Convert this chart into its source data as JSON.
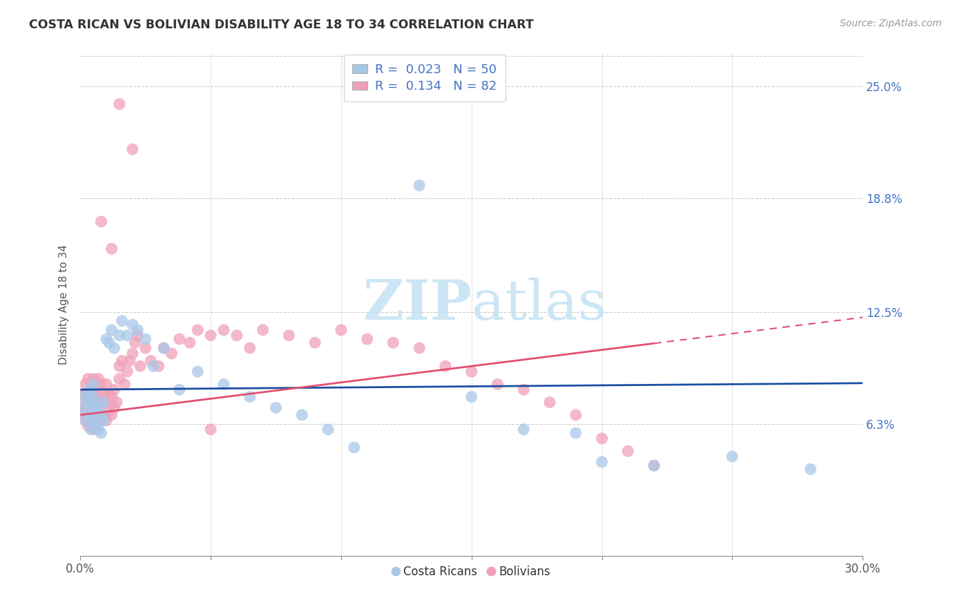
{
  "title": "COSTA RICAN VS BOLIVIAN DISABILITY AGE 18 TO 34 CORRELATION CHART",
  "source": "Source: ZipAtlas.com",
  "ylabel": "Disability Age 18 to 34",
  "ytick_labels": [
    "6.3%",
    "12.5%",
    "18.8%",
    "25.0%"
  ],
  "ytick_values": [
    0.063,
    0.125,
    0.188,
    0.25
  ],
  "xlim": [
    0.0,
    0.3
  ],
  "ylim": [
    -0.01,
    0.268
  ],
  "costa_color": "#a8c8e8",
  "boliv_color": "#f0a0b8",
  "costa_line_color": "#1a4fa0",
  "boliv_line_color": "#e05070",
  "watermark_color": "#c8e4f4",
  "costa_r": 0.023,
  "costa_n": 50,
  "boliv_r": 0.134,
  "boliv_n": 82,
  "costa_intercept": 0.082,
  "costa_slope": 0.012,
  "boliv_intercept": 0.068,
  "boliv_slope": 0.18,
  "boliv_line_end_x": 0.22,
  "grid_color": "#cccccc",
  "xtick_positions": [
    0.0,
    0.05,
    0.1,
    0.15,
    0.2,
    0.25,
    0.3
  ],
  "costa_x": [
    0.001,
    0.002,
    0.002,
    0.003,
    0.003,
    0.003,
    0.004,
    0.004,
    0.004,
    0.005,
    0.005,
    0.005,
    0.005,
    0.006,
    0.006,
    0.006,
    0.007,
    0.007,
    0.008,
    0.008,
    0.009,
    0.009,
    0.01,
    0.011,
    0.012,
    0.013,
    0.015,
    0.016,
    0.018,
    0.02,
    0.022,
    0.025,
    0.028,
    0.032,
    0.038,
    0.045,
    0.055,
    0.065,
    0.075,
    0.085,
    0.095,
    0.105,
    0.13,
    0.15,
    0.17,
    0.19,
    0.2,
    0.22,
    0.25,
    0.28
  ],
  "costa_y": [
    0.072,
    0.078,
    0.065,
    0.068,
    0.075,
    0.08,
    0.06,
    0.07,
    0.082,
    0.065,
    0.072,
    0.078,
    0.085,
    0.062,
    0.068,
    0.075,
    0.06,
    0.072,
    0.058,
    0.068,
    0.065,
    0.075,
    0.11,
    0.108,
    0.115,
    0.105,
    0.112,
    0.12,
    0.112,
    0.118,
    0.115,
    0.11,
    0.095,
    0.105,
    0.082,
    0.092,
    0.085,
    0.078,
    0.072,
    0.068,
    0.06,
    0.05,
    0.195,
    0.078,
    0.06,
    0.058,
    0.042,
    0.04,
    0.045,
    0.038
  ],
  "boliv_x": [
    0.001,
    0.001,
    0.001,
    0.002,
    0.002,
    0.002,
    0.002,
    0.003,
    0.003,
    0.003,
    0.003,
    0.004,
    0.004,
    0.004,
    0.005,
    0.005,
    0.005,
    0.005,
    0.006,
    0.006,
    0.006,
    0.007,
    0.007,
    0.007,
    0.008,
    0.008,
    0.008,
    0.009,
    0.009,
    0.01,
    0.01,
    0.01,
    0.011,
    0.011,
    0.012,
    0.012,
    0.013,
    0.013,
    0.014,
    0.015,
    0.015,
    0.016,
    0.017,
    0.018,
    0.019,
    0.02,
    0.021,
    0.022,
    0.023,
    0.025,
    0.027,
    0.03,
    0.032,
    0.035,
    0.038,
    0.042,
    0.045,
    0.05,
    0.055,
    0.06,
    0.065,
    0.07,
    0.08,
    0.09,
    0.1,
    0.11,
    0.12,
    0.13,
    0.14,
    0.15,
    0.16,
    0.17,
    0.18,
    0.19,
    0.2,
    0.21,
    0.22,
    0.05,
    0.015,
    0.02,
    0.008,
    0.012
  ],
  "boliv_y": [
    0.072,
    0.068,
    0.078,
    0.065,
    0.072,
    0.08,
    0.085,
    0.062,
    0.07,
    0.078,
    0.088,
    0.065,
    0.075,
    0.082,
    0.06,
    0.07,
    0.078,
    0.088,
    0.065,
    0.072,
    0.082,
    0.068,
    0.078,
    0.088,
    0.065,
    0.075,
    0.085,
    0.068,
    0.08,
    0.065,
    0.075,
    0.085,
    0.07,
    0.08,
    0.068,
    0.078,
    0.072,
    0.082,
    0.075,
    0.088,
    0.095,
    0.098,
    0.085,
    0.092,
    0.098,
    0.102,
    0.108,
    0.112,
    0.095,
    0.105,
    0.098,
    0.095,
    0.105,
    0.102,
    0.11,
    0.108,
    0.115,
    0.112,
    0.115,
    0.112,
    0.105,
    0.115,
    0.112,
    0.108,
    0.115,
    0.11,
    0.108,
    0.105,
    0.095,
    0.092,
    0.085,
    0.082,
    0.075,
    0.068,
    0.055,
    0.048,
    0.04,
    0.06,
    0.24,
    0.215,
    0.175,
    0.16
  ]
}
